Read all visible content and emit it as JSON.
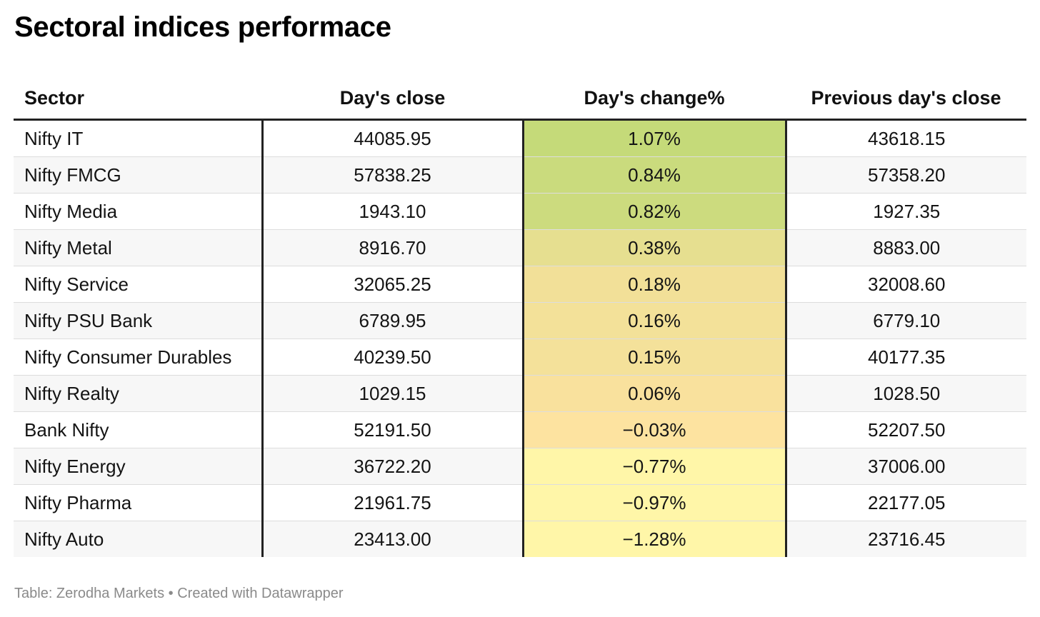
{
  "title": "Sectoral indices performace",
  "footer": "Table: Zerodha Markets • Created with Datawrapper",
  "colors": {
    "high": "#c5da79",
    "mid": "#fde2a0",
    "low": "#fff6a8"
  },
  "chart_data": {
    "type": "table",
    "title": "Sectoral indices performace",
    "columns": [
      "Sector",
      "Day's close",
      "Day's change%",
      "Previous day's close"
    ],
    "rows": [
      {
        "sector": "Nifty IT",
        "close": "44085.95",
        "change": "1.07%",
        "prev": "43618.15",
        "change_value": 1.07
      },
      {
        "sector": "Nifty FMCG",
        "close": "57838.25",
        "change": "0.84%",
        "prev": "57358.20",
        "change_value": 0.84
      },
      {
        "sector": "Nifty Media",
        "close": "1943.10",
        "change": "0.82%",
        "prev": "1927.35",
        "change_value": 0.82
      },
      {
        "sector": "Nifty Metal",
        "close": "8916.70",
        "change": "0.38%",
        "prev": "8883.00",
        "change_value": 0.38
      },
      {
        "sector": "Nifty Service",
        "close": "32065.25",
        "change": "0.18%",
        "prev": "32008.60",
        "change_value": 0.18
      },
      {
        "sector": "Nifty PSU Bank",
        "close": "6789.95",
        "change": "0.16%",
        "prev": "6779.10",
        "change_value": 0.16
      },
      {
        "sector": "Nifty Consumer Durables",
        "close": "40239.50",
        "change": "0.15%",
        "prev": "40177.35",
        "change_value": 0.15
      },
      {
        "sector": "Nifty Realty",
        "close": "1029.15",
        "change": "0.06%",
        "prev": "1028.50",
        "change_value": 0.06
      },
      {
        "sector": "Bank Nifty",
        "close": "52191.50",
        "change": "−0.03%",
        "prev": "52207.50",
        "change_value": -0.03
      },
      {
        "sector": "Nifty Energy",
        "close": "36722.20",
        "change": "−0.77%",
        "prev": "37006.00",
        "change_value": -0.77
      },
      {
        "sector": "Nifty Pharma",
        "close": "21961.75",
        "change": "−0.97%",
        "prev": "22177.05",
        "change_value": -0.97
      },
      {
        "sector": "Nifty Auto",
        "close": "23413.00",
        "change": "−1.28%",
        "prev": "23716.45",
        "change_value": -1.28
      }
    ]
  }
}
